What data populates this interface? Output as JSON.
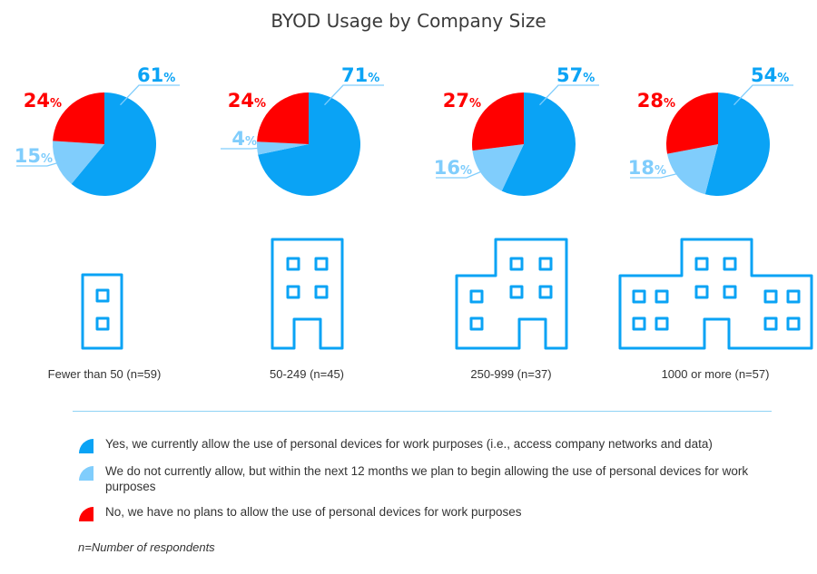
{
  "colors": {
    "yes": "#0aa3f5",
    "plan": "#80cdfc",
    "no": "#ff0000",
    "building": "#0aa3f5"
  },
  "chart_data": {
    "type": "pie",
    "title": "BYOD Usage by Company Size",
    "series_labels": {
      "yes": "Yes, we currently allow the use of personal devices for work purposes (i.e., access company networks and data)",
      "plan": "We do not currently allow, but within the next 12 months we plan to begin allowing the use of personal devices for work purposes",
      "no": "No, we have no plans to allow the use of personal devices for work purposes"
    },
    "pies": [
      {
        "category": "Fewer than 50 (n=59)",
        "yes": 61,
        "plan": 15,
        "no": 24
      },
      {
        "category": "50-249 (n=45)",
        "yes": 71,
        "plan": 4,
        "no": 24
      },
      {
        "category": "250-999 (n=37)",
        "yes": 57,
        "plan": 16,
        "no": 27
      },
      {
        "category": "1000 or more (n=57)",
        "yes": 54,
        "plan": 18,
        "no": 28
      }
    ],
    "percent_symbol": "%",
    "note": "n=Number of respondents"
  }
}
